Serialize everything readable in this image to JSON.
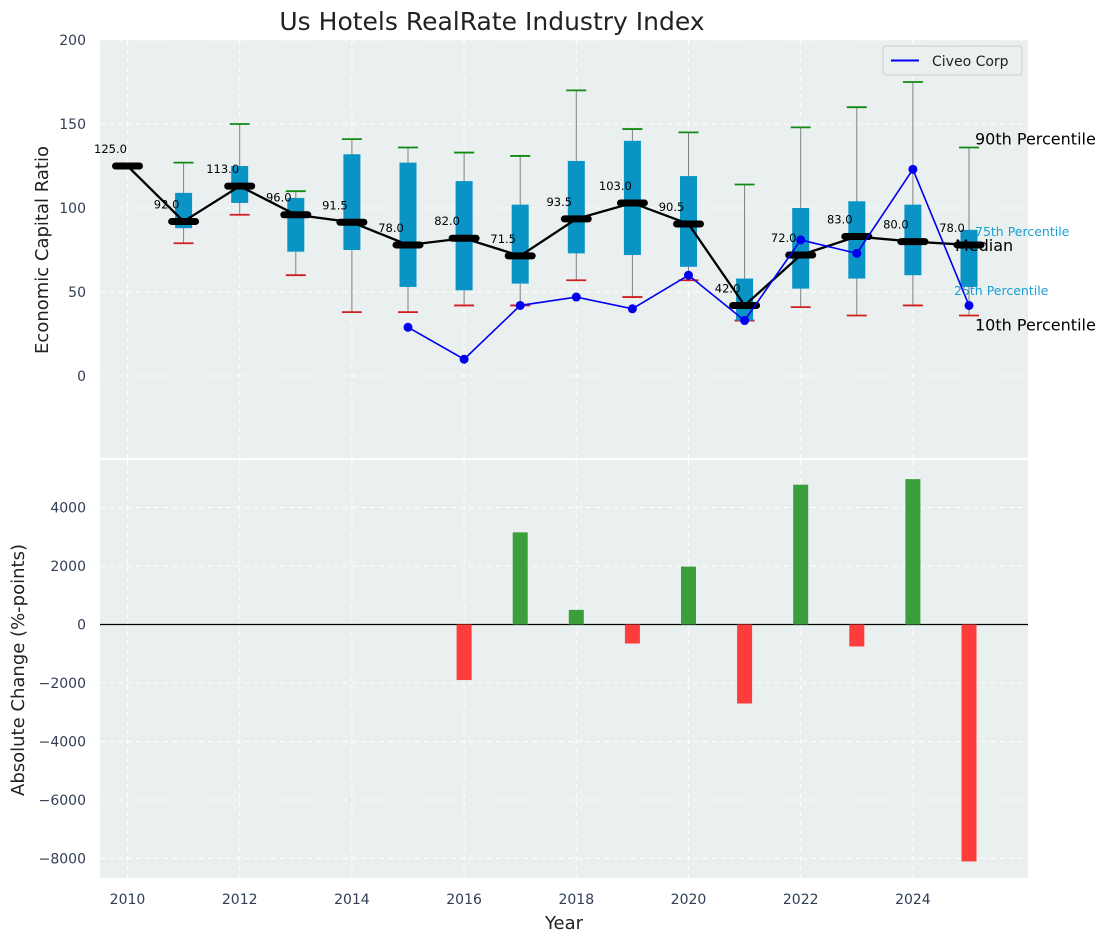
{
  "chart_data": [
    {
      "type": "boxplot-with-line",
      "title": "Us Hotels RealRate Industry Index",
      "xlabel": "",
      "ylabel": "Economic Capital Ratio",
      "ylim": [
        -50,
        200
      ],
      "yticks": [
        0,
        50,
        100,
        150,
        200
      ],
      "years": [
        2010,
        2011,
        2012,
        2013,
        2014,
        2015,
        2016,
        2017,
        2018,
        2019,
        2020,
        2021,
        2022,
        2023,
        2024,
        2025
      ],
      "median": [
        125.0,
        92.0,
        113.0,
        96.0,
        91.5,
        78.0,
        82.0,
        71.5,
        93.5,
        103.0,
        90.5,
        42.0,
        72.0,
        83.0,
        80.0,
        78.0
      ],
      "median_labels": [
        "125.0",
        "92.0",
        "113.0",
        "96.0",
        "91.5",
        "78.0",
        "82.0",
        "71.5",
        "93.5",
        "103.0",
        "90.5",
        "42.0",
        "72.0",
        "83.0",
        "80.0",
        "78.0"
      ],
      "p25": [
        null,
        88,
        103,
        74,
        75,
        53,
        51,
        55,
        73,
        72,
        65,
        33,
        52,
        58,
        60,
        53
      ],
      "p75": [
        null,
        109,
        125,
        106,
        132,
        127,
        116,
        102,
        128,
        140,
        119,
        58,
        100,
        104,
        102,
        87
      ],
      "p10": [
        null,
        79,
        96,
        60,
        38,
        38,
        42,
        42,
        57,
        47,
        57,
        33,
        41,
        36,
        42,
        36
      ],
      "p90": [
        null,
        127,
        150,
        110,
        141,
        136,
        133,
        131,
        170,
        147,
        145,
        114,
        148,
        160,
        175,
        136
      ],
      "company_series": {
        "name": "Civeo Corp",
        "years": [
          2015,
          2016,
          2017,
          2018,
          2019,
          2020,
          2021,
          2022,
          2023,
          2024,
          2025
        ],
        "values": [
          29,
          10,
          42,
          47,
          40,
          60,
          33,
          81,
          73,
          123,
          42
        ]
      },
      "legend": {
        "placement": "top-right",
        "entries": [
          "Civeo Corp"
        ]
      },
      "percentile_labels": {
        "p90": "90th Percentile",
        "p75": "75th Percentile",
        "median": "Median",
        "p25": "25th Percentile",
        "p10": "10th Percentile"
      },
      "colors": {
        "box": "#0a94c6",
        "median": "#000000",
        "whisker": "#808080",
        "cap_high": "#138a13",
        "cap_low": "#d11d1d",
        "company": "#0000ee",
        "background": "#eaeff0",
        "grid": "#ffffff",
        "pct_small": "#1a9fd0"
      }
    },
    {
      "type": "bar",
      "title": "",
      "xlabel": "Year",
      "ylabel": "Absolute Change (%-points)",
      "ylim": [
        -8700,
        5000
      ],
      "yticks": [
        -8000,
        -6000,
        -4000,
        -2000,
        0,
        2000,
        4000
      ],
      "ytick_labels": [
        "−8000",
        "−6000",
        "−4000",
        "−2000",
        "0",
        "2000",
        "4000"
      ],
      "x": [
        2016,
        2017,
        2018,
        2019,
        2020,
        2021,
        2022,
        2023,
        2024,
        2025
      ],
      "values": [
        -1900,
        3150,
        500,
        -650,
        1980,
        -2700,
        4780,
        -750,
        4970,
        -8100
      ],
      "xticks": [
        2010,
        2012,
        2014,
        2016,
        2018,
        2020,
        2022,
        2024
      ],
      "colors": {
        "positive": "#3a9e3a",
        "negative": "#ff3c3c"
      }
    }
  ]
}
